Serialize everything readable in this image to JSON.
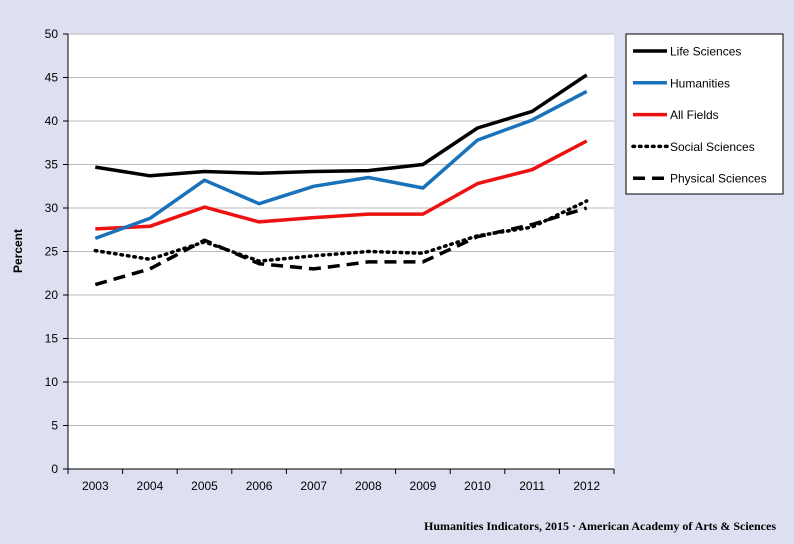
{
  "source_text": "Humanities Indicators, 2015 · American Academy of Arts & Sciences",
  "chart_data": {
    "type": "line",
    "title": "",
    "xlabel": "",
    "ylabel": "Percent",
    "x": [
      "2003",
      "2004",
      "2005",
      "2006",
      "2007",
      "2008",
      "2009",
      "2010",
      "2011",
      "2012"
    ],
    "ylim": [
      0,
      50
    ],
    "yticks": [
      0,
      5,
      10,
      15,
      20,
      25,
      30,
      35,
      40,
      45,
      50
    ],
    "grid": "horizontal",
    "legend_position": "top-right",
    "background": "#dde0f0",
    "series": [
      {
        "name": "Life Sciences",
        "color": "#000000",
        "style": "solid",
        "values": [
          34.7,
          33.7,
          34.2,
          34.0,
          34.2,
          34.3,
          35.0,
          39.2,
          41.1,
          45.3
        ]
      },
      {
        "name": "Humanities",
        "color": "#1a72bb",
        "style": "solid",
        "values": [
          26.5,
          28.8,
          33.2,
          30.5,
          32.5,
          33.5,
          32.3,
          37.8,
          40.1,
          43.4
        ]
      },
      {
        "name": "All Fields",
        "color": "#ee1111",
        "style": "solid",
        "values": [
          27.6,
          27.9,
          30.1,
          28.4,
          28.9,
          29.3,
          29.3,
          32.8,
          34.4,
          37.7
        ]
      },
      {
        "name": "Social Sciences",
        "color": "#000000",
        "style": "dotted",
        "values": [
          25.1,
          24.1,
          26.1,
          23.9,
          24.5,
          25.0,
          24.8,
          26.8,
          27.8,
          30.8
        ]
      },
      {
        "name": "Physical Sciences",
        "color": "#000000",
        "style": "dashed",
        "values": [
          21.2,
          23.0,
          26.3,
          23.6,
          23.0,
          23.8,
          23.8,
          26.7,
          28.1,
          30.0
        ]
      }
    ]
  }
}
